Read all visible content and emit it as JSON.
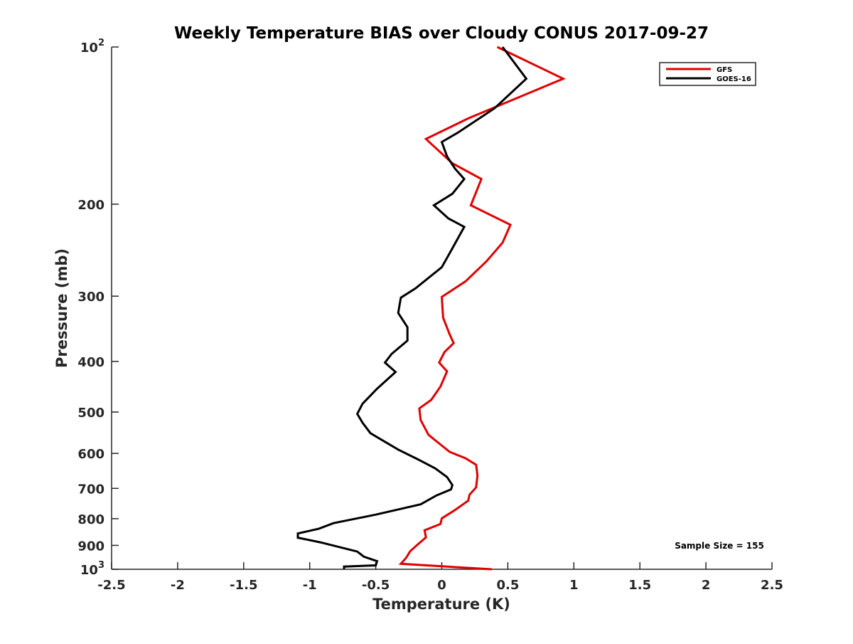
{
  "chart_data": {
    "type": "line",
    "title": "Weekly Temperature BIAS over Cloudy CONUS 2017-09-27",
    "xlabel": "Temperature (K)",
    "ylabel": "Pressure (mb)",
    "xlim": [
      -2.5,
      2.5
    ],
    "ylim": [
      100,
      1000
    ],
    "y_scale": "log",
    "y_reversed": true,
    "grid": false,
    "legend_position": "top-right",
    "x_ticks": [
      {
        "value": -2.5,
        "label": "-2.5"
      },
      {
        "value": -2,
        "label": "-2"
      },
      {
        "value": -1.5,
        "label": "-1.5"
      },
      {
        "value": -1,
        "label": "-1"
      },
      {
        "value": -0.5,
        "label": "-0.5"
      },
      {
        "value": 0,
        "label": "0"
      },
      {
        "value": 0.5,
        "label": "0.5"
      },
      {
        "value": 1,
        "label": "1"
      },
      {
        "value": 1.5,
        "label": "1.5"
      },
      {
        "value": 2,
        "label": "2"
      },
      {
        "value": 2.5,
        "label": "2.5"
      }
    ],
    "y_ticks": [
      {
        "value": 100,
        "label": "10",
        "sup": "2"
      },
      {
        "value": 200,
        "label": "200"
      },
      {
        "value": 300,
        "label": "300"
      },
      {
        "value": 400,
        "label": "400"
      },
      {
        "value": 500,
        "label": "500"
      },
      {
        "value": 600,
        "label": "600"
      },
      {
        "value": 700,
        "label": "700"
      },
      {
        "value": 800,
        "label": "800"
      },
      {
        "value": 900,
        "label": "900"
      },
      {
        "value": 1000,
        "label": "10",
        "sup": "3"
      }
    ],
    "series": [
      {
        "name": "GFS",
        "color": "#e00000",
        "points": [
          [
            0.42,
            100
          ],
          [
            0.92,
            115
          ],
          [
            0.2,
            137
          ],
          [
            -0.12,
            150
          ],
          [
            0.08,
            167
          ],
          [
            0.3,
            179
          ],
          [
            0.22,
            201
          ],
          [
            0.52,
            219
          ],
          [
            0.46,
            237
          ],
          [
            0.34,
            257
          ],
          [
            0.18,
            281
          ],
          [
            0.0,
            301
          ],
          [
            0.01,
            330
          ],
          [
            0.06,
            355
          ],
          [
            0.09,
            369
          ],
          [
            0.02,
            384
          ],
          [
            -0.02,
            402
          ],
          [
            0.04,
            418
          ],
          [
            -0.01,
            447
          ],
          [
            -0.08,
            474
          ],
          [
            -0.17,
            492
          ],
          [
            -0.16,
            518
          ],
          [
            -0.1,
            553
          ],
          [
            0.06,
            596
          ],
          [
            0.18,
            613
          ],
          [
            0.26,
            631
          ],
          [
            0.27,
            661
          ],
          [
            0.26,
            697
          ],
          [
            0.21,
            720
          ],
          [
            0.2,
            739
          ],
          [
            0.1,
            770
          ],
          [
            0.0,
            799
          ],
          [
            -0.01,
            819
          ],
          [
            -0.13,
            842
          ],
          [
            -0.12,
            869
          ],
          [
            -0.19,
            900
          ],
          [
            -0.24,
            924
          ],
          [
            -0.27,
            951
          ],
          [
            -0.31,
            976
          ],
          [
            0.38,
            1000
          ]
        ]
      },
      {
        "name": "GOES-16",
        "color": "#000000",
        "points": [
          [
            0.46,
            100
          ],
          [
            0.64,
            115
          ],
          [
            0.4,
            131
          ],
          [
            0.12,
            146
          ],
          [
            0.0,
            152
          ],
          [
            0.04,
            162
          ],
          [
            0.1,
            171
          ],
          [
            0.17,
            179
          ],
          [
            0.08,
            191
          ],
          [
            -0.06,
            201
          ],
          [
            0.05,
            213
          ],
          [
            0.17,
            221
          ],
          [
            0.08,
            243
          ],
          [
            0.0,
            264
          ],
          [
            -0.2,
            290
          ],
          [
            -0.31,
            302
          ],
          [
            -0.33,
            323
          ],
          [
            -0.26,
            344
          ],
          [
            -0.26,
            365
          ],
          [
            -0.38,
            387
          ],
          [
            -0.43,
            402
          ],
          [
            -0.35,
            419
          ],
          [
            -0.49,
            451
          ],
          [
            -0.6,
            482
          ],
          [
            -0.64,
            504
          ],
          [
            -0.6,
            524
          ],
          [
            -0.54,
            549
          ],
          [
            -0.33,
            590
          ],
          [
            -0.18,
            616
          ],
          [
            -0.05,
            641
          ],
          [
            0.04,
            666
          ],
          [
            0.08,
            690
          ],
          [
            0.07,
            703
          ],
          [
            -0.04,
            722
          ],
          [
            -0.16,
            751
          ],
          [
            -0.5,
            786
          ],
          [
            -0.82,
            816
          ],
          [
            -0.93,
            836
          ],
          [
            -1.09,
            854
          ],
          [
            -1.09,
            870
          ],
          [
            -0.92,
            888
          ],
          [
            -0.64,
            925
          ],
          [
            -0.59,
            946
          ],
          [
            -0.49,
            965
          ],
          [
            -0.5,
            983
          ],
          [
            -0.74,
            988
          ],
          [
            -0.74,
            1000
          ]
        ]
      }
    ],
    "annotations": [
      {
        "text": "Sample Size = 155",
        "position": "bottom-right"
      }
    ]
  }
}
